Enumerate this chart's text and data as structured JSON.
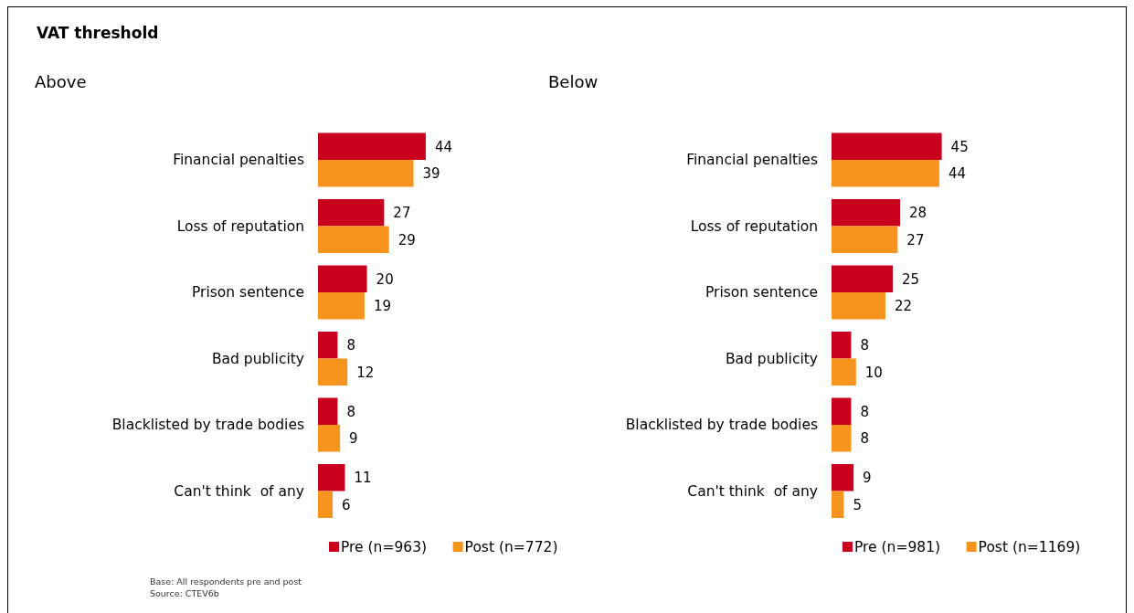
{
  "chart_data": [
    {
      "type": "bar",
      "orientation": "horizontal",
      "title": "Above",
      "categories": [
        "Financial penalties",
        "Loss of reputation",
        "Prison sentence",
        "Bad publicity",
        "Blacklisted by trade bodies",
        "Can't think  of any"
      ],
      "series": [
        {
          "name": "Pre (n=963)",
          "color": "#c8001e",
          "values": [
            44,
            27,
            20,
            8,
            8,
            11
          ]
        },
        {
          "name": "Post (n=772)",
          "color": "#f7941d",
          "values": [
            39,
            29,
            19,
            12,
            9,
            6
          ]
        }
      ],
      "data_labels": true,
      "legend": "bottom",
      "annotations": [
        "VAT threshold",
        "Base: All respondents pre and post",
        "Source: CTEV6b"
      ]
    },
    {
      "type": "bar",
      "orientation": "horizontal",
      "title": "Below",
      "categories": [
        "Financial penalties",
        "Loss of reputation",
        "Prison sentence",
        "Bad publicity",
        "Blacklisted by trade bodies",
        "Can't think  of any"
      ],
      "series": [
        {
          "name": "Pre (n=981)",
          "color": "#c8001e",
          "values": [
            45,
            28,
            25,
            8,
            8,
            9
          ]
        },
        {
          "name": "Post (n=1169)",
          "color": "#f7941d",
          "values": [
            44,
            27,
            22,
            10,
            8,
            5
          ]
        }
      ],
      "data_labels": true,
      "legend": "bottom"
    }
  ]
}
